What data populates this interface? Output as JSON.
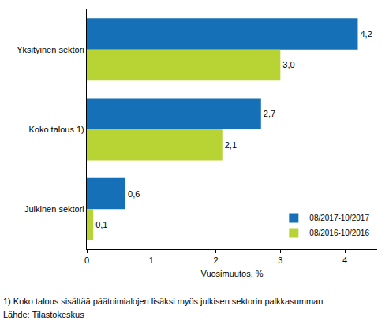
{
  "chart_data": {
    "type": "bar",
    "orientation": "horizontal",
    "categories": [
      "Yksityinen sektori",
      "Koko talous 1)",
      "Julkinen sektori"
    ],
    "series": [
      {
        "name": "08/2017-10/2017",
        "color": "#1670b8",
        "values": [
          4.2,
          2.7,
          0.6
        ],
        "value_labels": [
          "4,2",
          "2,7",
          "0,6"
        ]
      },
      {
        "name": "08/2016-10/2016",
        "color": "#b7d334",
        "values": [
          3.0,
          2.1,
          0.1
        ],
        "value_labels": [
          "3,0",
          "2,1",
          "0,1"
        ]
      }
    ],
    "xlabel": "Vuosimuutos, %",
    "xlim": [
      0,
      4.5
    ],
    "xticks": [
      0,
      1,
      2,
      3,
      4
    ],
    "grid": false,
    "data_labels": true,
    "legend": "bottom right",
    "annotations": [
      "1) Koko talous sisältää päätoimialojen lisäksi myös julkisen sektorin palkkasumman",
      "Lähde: Tilastokeskus"
    ]
  }
}
